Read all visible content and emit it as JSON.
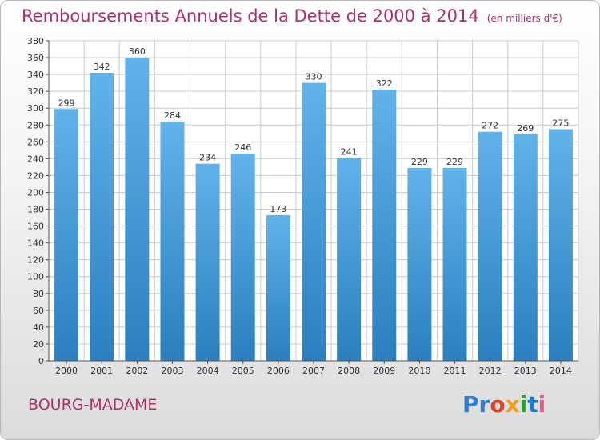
{
  "title": "Remboursements Annuels de la Dette de 2000 à 2014",
  "unit": "(en milliers d'€)",
  "commune": "BOURG-MADAME",
  "logo": [
    "Pr",
    "o",
    "x",
    "i",
    "t",
    "i"
  ],
  "colors": {
    "bar_top": "#62b2ea",
    "bar_bottom": "#2b7fbe",
    "title": "#b0306a",
    "grid": "#cccccc"
  },
  "chart_data": {
    "type": "bar",
    "categories": [
      "2000",
      "2001",
      "2002",
      "2003",
      "2004",
      "2005",
      "2006",
      "2007",
      "2008",
      "2009",
      "2010",
      "2011",
      "2012",
      "2013",
      "2014"
    ],
    "values": [
      299,
      342,
      360,
      284,
      234,
      246,
      173,
      330,
      241,
      322,
      229,
      229,
      272,
      269,
      275
    ],
    "title": "Remboursements Annuels de la Dette de 2000 à 2014",
    "xlabel": "",
    "ylabel": "",
    "ylim": [
      0,
      380
    ],
    "yticks": [
      0,
      20,
      40,
      60,
      80,
      100,
      120,
      140,
      160,
      180,
      200,
      220,
      240,
      260,
      280,
      300,
      320,
      340,
      360,
      380
    ],
    "grid": true
  }
}
